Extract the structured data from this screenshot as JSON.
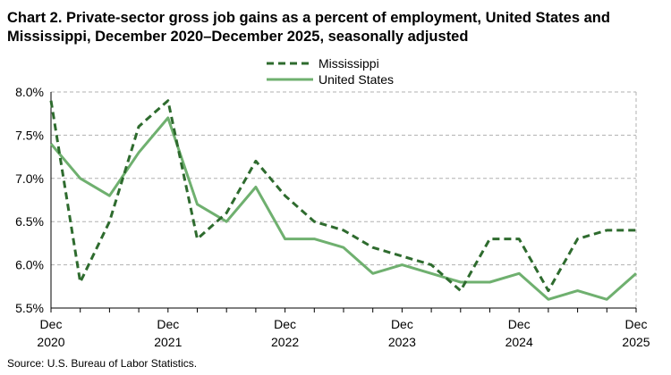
{
  "title": "Chart 2. Private-sector gross job gains as a percent of employment, United States and Mississippi, December 2020–December 2025, seasonally adjusted",
  "source": "Source: U.S. Bureau of Labor Statistics.",
  "chart_data": {
    "type": "line",
    "title": "Chart 2. Private-sector gross job gains as a percent of employment, United States and Mississippi, December 2020–December 2025, seasonally adjusted",
    "xlabel": "",
    "ylabel": "",
    "x": [
      "Dec 2020",
      "Mar 2021",
      "Jun 2021",
      "Sep 2021",
      "Dec 2021",
      "Mar 2022",
      "Jun 2022",
      "Sep 2022",
      "Dec 2022",
      "Mar 2023",
      "Jun 2023",
      "Sep 2023",
      "Dec 2023",
      "Mar 2024",
      "Jun 2024",
      "Sep 2024",
      "Dec 2024",
      "Mar 2025",
      "Jun 2025",
      "Sep 2025",
      "Dec 2025"
    ],
    "x_tick_labels": [
      {
        "month": "Dec",
        "year": "2020",
        "index": 0
      },
      {
        "month": "Dec",
        "year": "2021",
        "index": 4
      },
      {
        "month": "Dec",
        "year": "2022",
        "index": 8
      },
      {
        "month": "Dec",
        "year": "2023",
        "index": 12
      },
      {
        "month": "Dec",
        "year": "2024",
        "index": 16
      },
      {
        "month": "Dec",
        "year": "2025",
        "index": 20
      }
    ],
    "ylim": [
      5.5,
      8.0
    ],
    "y_ticks": [
      5.5,
      6.0,
      6.5,
      7.0,
      7.5,
      8.0
    ],
    "y_tick_labels": [
      "5.5%",
      "6.0%",
      "6.5%",
      "7.0%",
      "7.5%",
      "8.0%"
    ],
    "grid": "horizontal dashed",
    "legend_position": "top-center",
    "series": [
      {
        "name": "Mississippi",
        "style": "dashed",
        "color": "#2e6b2e",
        "values": [
          7.9,
          5.8,
          6.5,
          7.6,
          7.9,
          6.3,
          6.6,
          7.2,
          6.8,
          6.5,
          6.4,
          6.2,
          6.1,
          6.0,
          5.7,
          6.3,
          6.3,
          5.7,
          6.3,
          6.4,
          6.4
        ]
      },
      {
        "name": "United States",
        "style": "solid",
        "color": "#6fb06f",
        "values": [
          7.4,
          7.0,
          6.8,
          7.3,
          7.7,
          6.7,
          6.5,
          6.9,
          6.3,
          6.3,
          6.2,
          5.9,
          6.0,
          5.9,
          5.8,
          5.8,
          5.9,
          5.6,
          5.7,
          5.6,
          5.9
        ]
      }
    ]
  }
}
